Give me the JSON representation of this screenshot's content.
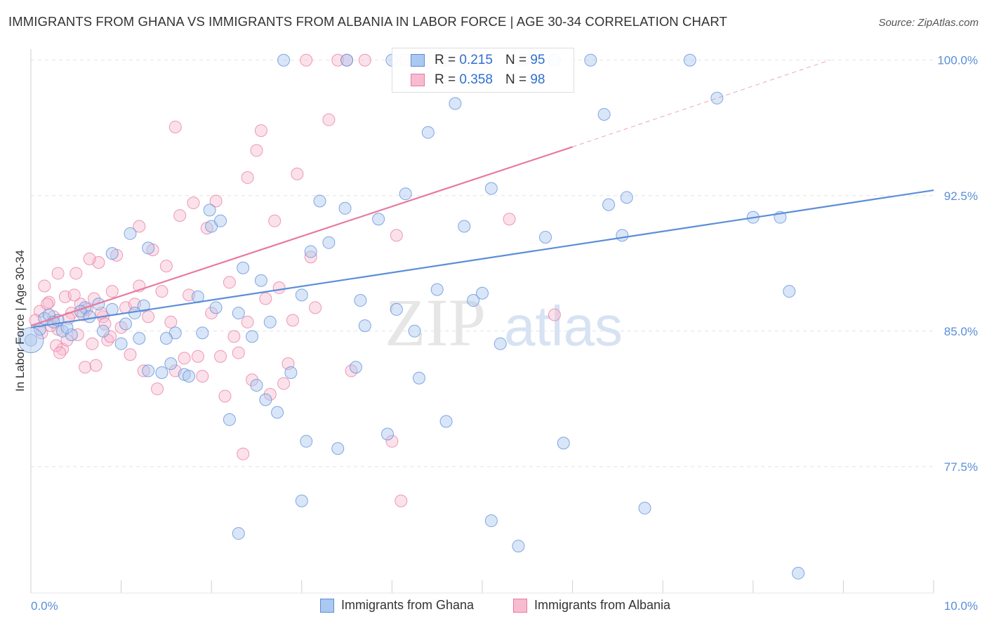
{
  "chart_data": {
    "type": "scatter",
    "title": "IMMIGRANTS FROM GHANA VS IMMIGRANTS FROM ALBANIA IN LABOR FORCE | AGE 30-34 CORRELATION CHART",
    "source": "Source: ZipAtlas.com",
    "xlabel": "",
    "ylabel": "In Labor Force | Age 30-34",
    "xlim": [
      0,
      10
    ],
    "ylim": [
      70.5,
      101.0
    ],
    "x_tick_labels": [
      "0.0%",
      "10.0%"
    ],
    "y_ticks": [
      77.5,
      85.0,
      92.5,
      100.0
    ],
    "y_tick_labels": [
      "77.5%",
      "85.0%",
      "92.5%",
      "100.0%"
    ],
    "watermark": "ZIPatlas",
    "legend": {
      "r_label": "R =",
      "n_label": "N =",
      "entries": [
        {
          "name": "Immigrants from Ghana",
          "r": "0.215",
          "n": "95",
          "color": "#5b8ed8"
        },
        {
          "name": "Immigrants from Albania",
          "r": "0.358",
          "n": "98",
          "color": "#e87aa0"
        }
      ]
    },
    "series": [
      {
        "name": "Immigrants from Ghana",
        "color": "#5b8ed8",
        "fill": "#aac8f0",
        "trend": {
          "x0": 0.0,
          "y0": 85.2,
          "x1": 10.0,
          "y1": 92.8
        },
        "points": [
          [
            0.0,
            84.5
          ],
          [
            0.15,
            85.7
          ],
          [
            0.35,
            85.0
          ],
          [
            0.45,
            84.8
          ],
          [
            0.6,
            86.3
          ],
          [
            0.75,
            86.5
          ],
          [
            0.9,
            86.2
          ],
          [
            1.05,
            85.4
          ],
          [
            1.2,
            84.6
          ],
          [
            1.3,
            82.8
          ],
          [
            1.45,
            82.7
          ],
          [
            1.6,
            84.9
          ],
          [
            1.7,
            82.6
          ],
          [
            1.85,
            86.9
          ],
          [
            2.0,
            90.8
          ],
          [
            2.1,
            91.1
          ],
          [
            1.98,
            91.7
          ],
          [
            2.3,
            86.0
          ],
          [
            2.35,
            88.5
          ],
          [
            2.5,
            82.0
          ],
          [
            2.6,
            81.2
          ],
          [
            2.73,
            80.5
          ],
          [
            2.88,
            82.7
          ],
          [
            3.0,
            87.0
          ],
          [
            3.05,
            78.9
          ],
          [
            3.1,
            89.4
          ],
          [
            3.2,
            92.2
          ],
          [
            3.3,
            89.9
          ],
          [
            3.48,
            91.8
          ],
          [
            3.5,
            100.0
          ],
          [
            3.65,
            86.7
          ],
          [
            3.7,
            85.3
          ],
          [
            3.85,
            91.2
          ],
          [
            3.95,
            79.3
          ],
          [
            4.05,
            86.2
          ],
          [
            4.15,
            92.6
          ],
          [
            4.25,
            85.0
          ],
          [
            4.3,
            82.4
          ],
          [
            4.4,
            96.0
          ],
          [
            4.5,
            87.3
          ],
          [
            4.6,
            80.0
          ],
          [
            4.7,
            97.6
          ],
          [
            4.8,
            90.8
          ],
          [
            4.9,
            86.7
          ],
          [
            5.0,
            87.1
          ],
          [
            5.1,
            92.9
          ],
          [
            5.2,
            84.3
          ],
          [
            5.45,
            100.0
          ],
          [
            5.7,
            90.2
          ],
          [
            5.8,
            100.0
          ],
          [
            5.9,
            78.8
          ],
          [
            6.2,
            100.0
          ],
          [
            6.35,
            97.0
          ],
          [
            6.4,
            92.0
          ],
          [
            6.55,
            90.3
          ],
          [
            6.6,
            92.4
          ],
          [
            6.8,
            75.2
          ],
          [
            5.1,
            74.5
          ],
          [
            5.4,
            73.1
          ],
          [
            3.0,
            75.6
          ],
          [
            2.3,
            73.8
          ],
          [
            2.8,
            100.0
          ],
          [
            4.0,
            100.0
          ],
          [
            4.6,
            100.0
          ],
          [
            7.3,
            100.0
          ],
          [
            7.6,
            97.9
          ],
          [
            8.0,
            91.3
          ],
          [
            8.3,
            91.3
          ],
          [
            8.4,
            87.2
          ],
          [
            8.5,
            71.6
          ],
          [
            1.1,
            90.4
          ],
          [
            1.3,
            89.6
          ],
          [
            0.9,
            89.3
          ],
          [
            0.55,
            86.1
          ],
          [
            0.3,
            85.6
          ],
          [
            0.2,
            85.9
          ],
          [
            0.8,
            85.0
          ],
          [
            1.0,
            84.3
          ],
          [
            1.5,
            84.6
          ],
          [
            1.75,
            82.5
          ],
          [
            2.2,
            80.1
          ],
          [
            3.4,
            78.5
          ],
          [
            0.65,
            85.8
          ],
          [
            1.55,
            83.2
          ],
          [
            2.05,
            86.3
          ],
          [
            2.45,
            84.7
          ],
          [
            2.65,
            85.5
          ],
          [
            3.6,
            83.0
          ],
          [
            1.25,
            86.4
          ],
          [
            0.25,
            85.5
          ],
          [
            0.1,
            85.1
          ],
          [
            0.4,
            85.2
          ],
          [
            2.55,
            87.8
          ],
          [
            1.9,
            84.9
          ],
          [
            1.15,
            86.0
          ]
        ]
      },
      {
        "name": "Immigrants from Albania",
        "color": "#e87aa0",
        "fill": "#f7bcd0",
        "trend": {
          "x0": 0.0,
          "y0": 85.3,
          "x1": 6.0,
          "y1": 95.2
        },
        "trend_dashed": {
          "x0": 6.0,
          "y0": 95.2,
          "x1": 8.85,
          "y1": 100.0
        },
        "points": [
          [
            0.1,
            86.1
          ],
          [
            0.15,
            87.5
          ],
          [
            0.2,
            86.6
          ],
          [
            0.25,
            85.8
          ],
          [
            0.3,
            85.1
          ],
          [
            0.35,
            84.0
          ],
          [
            0.4,
            84.5
          ],
          [
            0.45,
            86.0
          ],
          [
            0.5,
            88.2
          ],
          [
            0.55,
            86.5
          ],
          [
            0.6,
            83.0
          ],
          [
            0.7,
            86.8
          ],
          [
            0.75,
            88.8
          ],
          [
            0.8,
            85.8
          ],
          [
            0.85,
            84.5
          ],
          [
            0.9,
            87.2
          ],
          [
            0.95,
            89.2
          ],
          [
            1.0,
            85.2
          ],
          [
            1.05,
            86.3
          ],
          [
            1.1,
            83.7
          ],
          [
            1.15,
            86.5
          ],
          [
            1.2,
            87.5
          ],
          [
            1.25,
            82.8
          ],
          [
            1.3,
            85.8
          ],
          [
            1.35,
            89.5
          ],
          [
            1.4,
            81.8
          ],
          [
            1.45,
            87.2
          ],
          [
            1.5,
            88.6
          ],
          [
            1.55,
            85.5
          ],
          [
            1.6,
            82.8
          ],
          [
            1.65,
            91.4
          ],
          [
            1.7,
            83.5
          ],
          [
            1.75,
            87.0
          ],
          [
            1.8,
            92.1
          ],
          [
            1.85,
            83.6
          ],
          [
            1.9,
            82.5
          ],
          [
            1.95,
            90.7
          ],
          [
            2.0,
            86.0
          ],
          [
            2.05,
            92.2
          ],
          [
            2.1,
            83.6
          ],
          [
            2.15,
            81.4
          ],
          [
            2.2,
            87.7
          ],
          [
            2.25,
            84.7
          ],
          [
            2.3,
            83.8
          ],
          [
            2.35,
            78.2
          ],
          [
            2.4,
            85.5
          ],
          [
            2.45,
            82.3
          ],
          [
            2.5,
            95.0
          ],
          [
            2.55,
            96.1
          ],
          [
            2.6,
            86.8
          ],
          [
            2.65,
            81.5
          ],
          [
            2.75,
            87.4
          ],
          [
            2.8,
            82.1
          ],
          [
            2.85,
            83.2
          ],
          [
            2.9,
            85.6
          ],
          [
            2.95,
            93.7
          ],
          [
            3.05,
            100.0
          ],
          [
            3.15,
            86.3
          ],
          [
            3.3,
            96.7
          ],
          [
            3.4,
            100.0
          ],
          [
            3.5,
            100.0
          ],
          [
            3.55,
            82.8
          ],
          [
            3.7,
            100.0
          ],
          [
            4.0,
            78.9
          ],
          [
            4.05,
            90.3
          ],
          [
            4.1,
            75.6
          ],
          [
            4.15,
            100.0
          ],
          [
            4.25,
            100.0
          ],
          [
            4.35,
            100.0
          ],
          [
            4.55,
            100.0
          ],
          [
            4.8,
            100.0
          ],
          [
            5.0,
            100.0
          ],
          [
            5.3,
            91.2
          ],
          [
            5.8,
            85.9
          ],
          [
            3.1,
            89.1
          ],
          [
            2.7,
            91.1
          ],
          [
            2.4,
            93.5
          ],
          [
            1.6,
            96.3
          ],
          [
            1.2,
            90.8
          ],
          [
            0.65,
            89.0
          ],
          [
            0.3,
            88.2
          ],
          [
            0.05,
            85.6
          ],
          [
            0.12,
            84.9
          ],
          [
            0.18,
            86.5
          ],
          [
            0.22,
            85.3
          ],
          [
            0.28,
            84.2
          ],
          [
            0.32,
            83.8
          ],
          [
            0.38,
            86.9
          ],
          [
            0.42,
            85.7
          ],
          [
            0.48,
            87.0
          ],
          [
            0.52,
            84.8
          ],
          [
            0.58,
            85.9
          ],
          [
            0.62,
            86.2
          ],
          [
            0.68,
            84.3
          ],
          [
            0.72,
            83.1
          ],
          [
            0.78,
            86.0
          ],
          [
            0.82,
            85.4
          ],
          [
            0.88,
            84.7
          ]
        ]
      }
    ]
  }
}
